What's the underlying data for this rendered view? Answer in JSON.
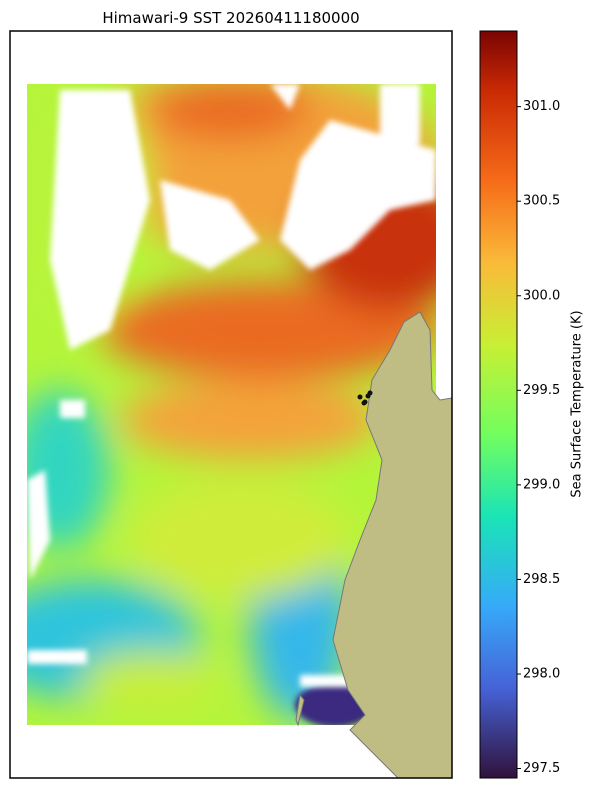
{
  "chart_data": {
    "type": "heatmap",
    "title": "Himawari-9 SST 20260411180000",
    "colorbar": {
      "label": "Sea Surface Temperature (K)",
      "lim": [
        297.45,
        301.4
      ],
      "ticks": [
        297.5,
        {
          "value": 298,
          "label": "298.0"
        },
        298.5,
        {
          "value": 299,
          "label": "299.0"
        },
        299.5,
        {
          "value": 300,
          "label": "300.0"
        },
        300.5,
        {
          "value": 301,
          "label": "301.0"
        }
      ]
    }
  }
}
